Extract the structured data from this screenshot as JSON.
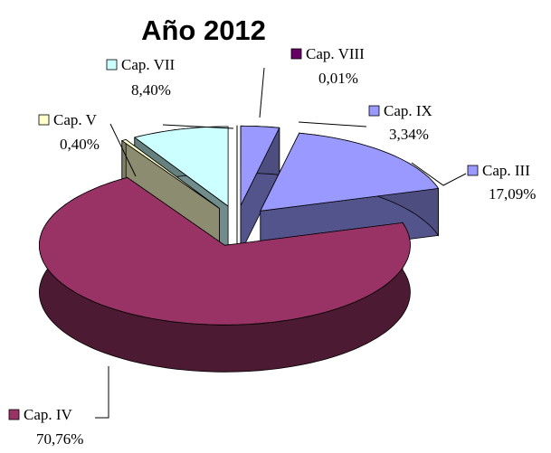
{
  "chart_data": {
    "type": "pie",
    "title": "Año 2012",
    "categories": [
      "Cap. VIII",
      "Cap. IX",
      "Cap. III",
      "Cap. IV",
      "Cap. V",
      "Cap. VII"
    ],
    "values": [
      0.01,
      3.34,
      17.09,
      70.76,
      0.4,
      8.4
    ],
    "value_labels": [
      "0,01%",
      "3,34%",
      "17,09%",
      "70,76%",
      "0,40%",
      "8,40%"
    ],
    "colors": [
      "#660066",
      "#9999ff",
      "#9999ff",
      "#993366",
      "#ffffcc",
      "#ccffff"
    ]
  }
}
